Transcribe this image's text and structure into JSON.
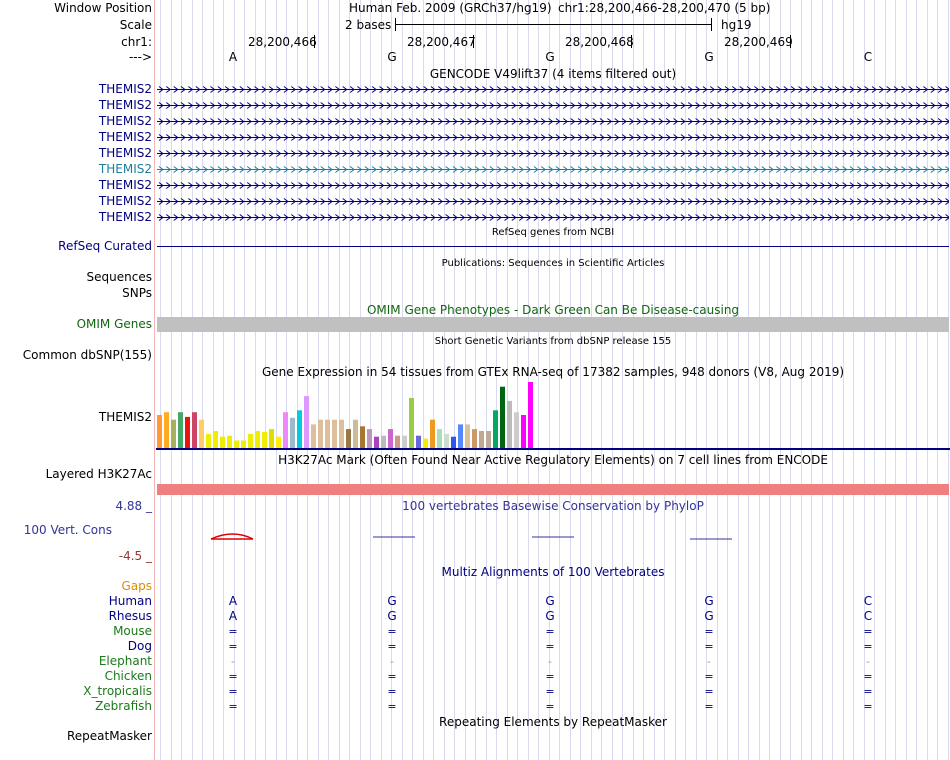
{
  "labels": {
    "window_position": "Window Position",
    "scale": "Scale",
    "chr": "chr1:",
    "strand": "--->"
  },
  "header": {
    "assembly": "Human Feb. 2009 (GRCh37/hg19)",
    "position": "chr1:28,200,466-28,200,470 (5 bp)",
    "scale_text": "2 bases",
    "db": "hg19",
    "coords": [
      "28,200,466",
      "28,200,467",
      "28,200,468",
      "28,200,469"
    ],
    "bases": [
      "A",
      "G",
      "G",
      "G",
      "C"
    ]
  },
  "gencode": {
    "title": "GENCODE V49lift37 (4 items filtered out)",
    "transcripts": [
      {
        "label": "THEMIS2",
        "color": "#000080"
      },
      {
        "label": "THEMIS2",
        "color": "#000080"
      },
      {
        "label": "THEMIS2",
        "color": "#000080"
      },
      {
        "label": "THEMIS2",
        "color": "#000080"
      },
      {
        "label": "THEMIS2",
        "color": "#000080"
      },
      {
        "label": "THEMIS2",
        "color": "#1a7ea0"
      },
      {
        "label": "THEMIS2",
        "color": "#000080"
      },
      {
        "label": "THEMIS2",
        "color": "#000080"
      },
      {
        "label": "THEMIS2",
        "color": "#000080"
      }
    ]
  },
  "refseq": {
    "label": "RefSeq Curated",
    "title": "RefSeq genes from NCBI"
  },
  "publications": {
    "title": "Publications: Sequences in Scientific Articles",
    "sequences": "Sequences",
    "snps": "SNPs"
  },
  "omim": {
    "title": "OMIM Gene Phenotypes - Dark Green Can Be Disease-causing",
    "label": "OMIM Genes"
  },
  "dbsnp": {
    "title": "Short Genetic Variants from dbSNP release 155",
    "label": "Common dbSNP(155)"
  },
  "gtex": {
    "title": "Gene Expression in 54 tissues from GTEx RNA-seq of 17382 samples, 948 donors (V8, Aug 2019)",
    "label": "THEMIS2",
    "values": [
      35,
      38,
      30,
      38,
      33,
      38,
      30,
      15,
      18,
      12,
      13,
      8,
      8,
      15,
      18,
      17,
      20,
      12,
      38,
      32,
      40,
      55,
      25,
      30,
      30,
      30,
      30,
      20,
      30,
      23,
      20,
      12,
      13,
      20,
      13,
      13,
      53,
      13,
      10,
      30,
      20,
      15,
      12,
      25,
      25,
      20,
      18,
      18,
      40,
      65,
      50,
      38,
      35,
      70
    ],
    "colors": [
      "#ff9933",
      "#ffaa22",
      "#aab060",
      "#44aa66",
      "#ee1111",
      "#cc4466",
      "#ffcc66",
      "#eeee00",
      "#eeee00",
      "#eeee00",
      "#eeee00",
      "#eeee00",
      "#eeee00",
      "#eeee00",
      "#eeee00",
      "#eeee00",
      "#dddd00",
      "#ffee00",
      "#ee88ff",
      "#99bbcc",
      "#00ccdd",
      "#dd99ff",
      "#ddc09b",
      "#ddc09b",
      "#ddc09b",
      "#ddc09b",
      "#ddc09b",
      "#997744",
      "#ccbb99",
      "#aa7733",
      "#bb99bb",
      "#aa44bb",
      "#bbbbbb",
      "#cc66cc",
      "#cc9988",
      "#cccccc",
      "#99cc44",
      "#6666dd",
      "#eeee00",
      "#ee9922",
      "#aaddbb",
      "#ccddcc",
      "#3355ee",
      "#5588ff",
      "#ddc09b",
      "#cc9966",
      "#c0a98e",
      "#bbaa99",
      "#00aa66",
      "#006611",
      "#bbbbbb",
      "#cccccc",
      "#ff00ff",
      "#ff00ff"
    ]
  },
  "h3k27ac": {
    "title": "H3K27Ac Mark (Often Found Near Active Regulatory Elements) on 7 cell lines from ENCODE",
    "label": "Layered H3K27Ac"
  },
  "phylop": {
    "title": "100 vertebrates Basewise Conservation by PhyloP",
    "label": "100 Vert. Cons",
    "max": "4.88 _",
    "min": "-4.5 _"
  },
  "multiz": {
    "title": "Multiz Alignments of 100 Vertebrates",
    "gaps": "Gaps",
    "species": [
      {
        "name": "Human",
        "color": "#000080",
        "seq": [
          "A",
          "G",
          "G",
          "G",
          "C"
        ]
      },
      {
        "name": "Rhesus",
        "color": "#000080",
        "seq": [
          "A",
          "G",
          "G",
          "G",
          "C"
        ]
      },
      {
        "name": "Mouse",
        "color": "#1a7a1a",
        "seq": [
          "=",
          "=",
          "=",
          "=",
          "="
        ]
      },
      {
        "name": "Dog",
        "color": "#000080",
        "seq": [
          "=",
          "=",
          "=",
          "=",
          "="
        ]
      },
      {
        "name": "Elephant",
        "color": "#1a7a1a",
        "seq": [
          "-",
          "-",
          "-",
          "-",
          "-"
        ]
      },
      {
        "name": "Chicken",
        "color": "#1a7a1a",
        "seq": [
          "=",
          "=",
          "=",
          "=",
          "="
        ]
      },
      {
        "name": "X_tropicalis",
        "color": "#1a7a1a",
        "seq": [
          "=",
          "=",
          "=",
          "=",
          "="
        ]
      },
      {
        "name": "Zebrafish",
        "color": "#1a7a1a",
        "seq": [
          "=",
          "=",
          "=",
          "=",
          "="
        ]
      }
    ]
  },
  "repeatmasker": {
    "title": "Repeating Elements by RepeatMasker",
    "label": "RepeatMasker"
  }
}
